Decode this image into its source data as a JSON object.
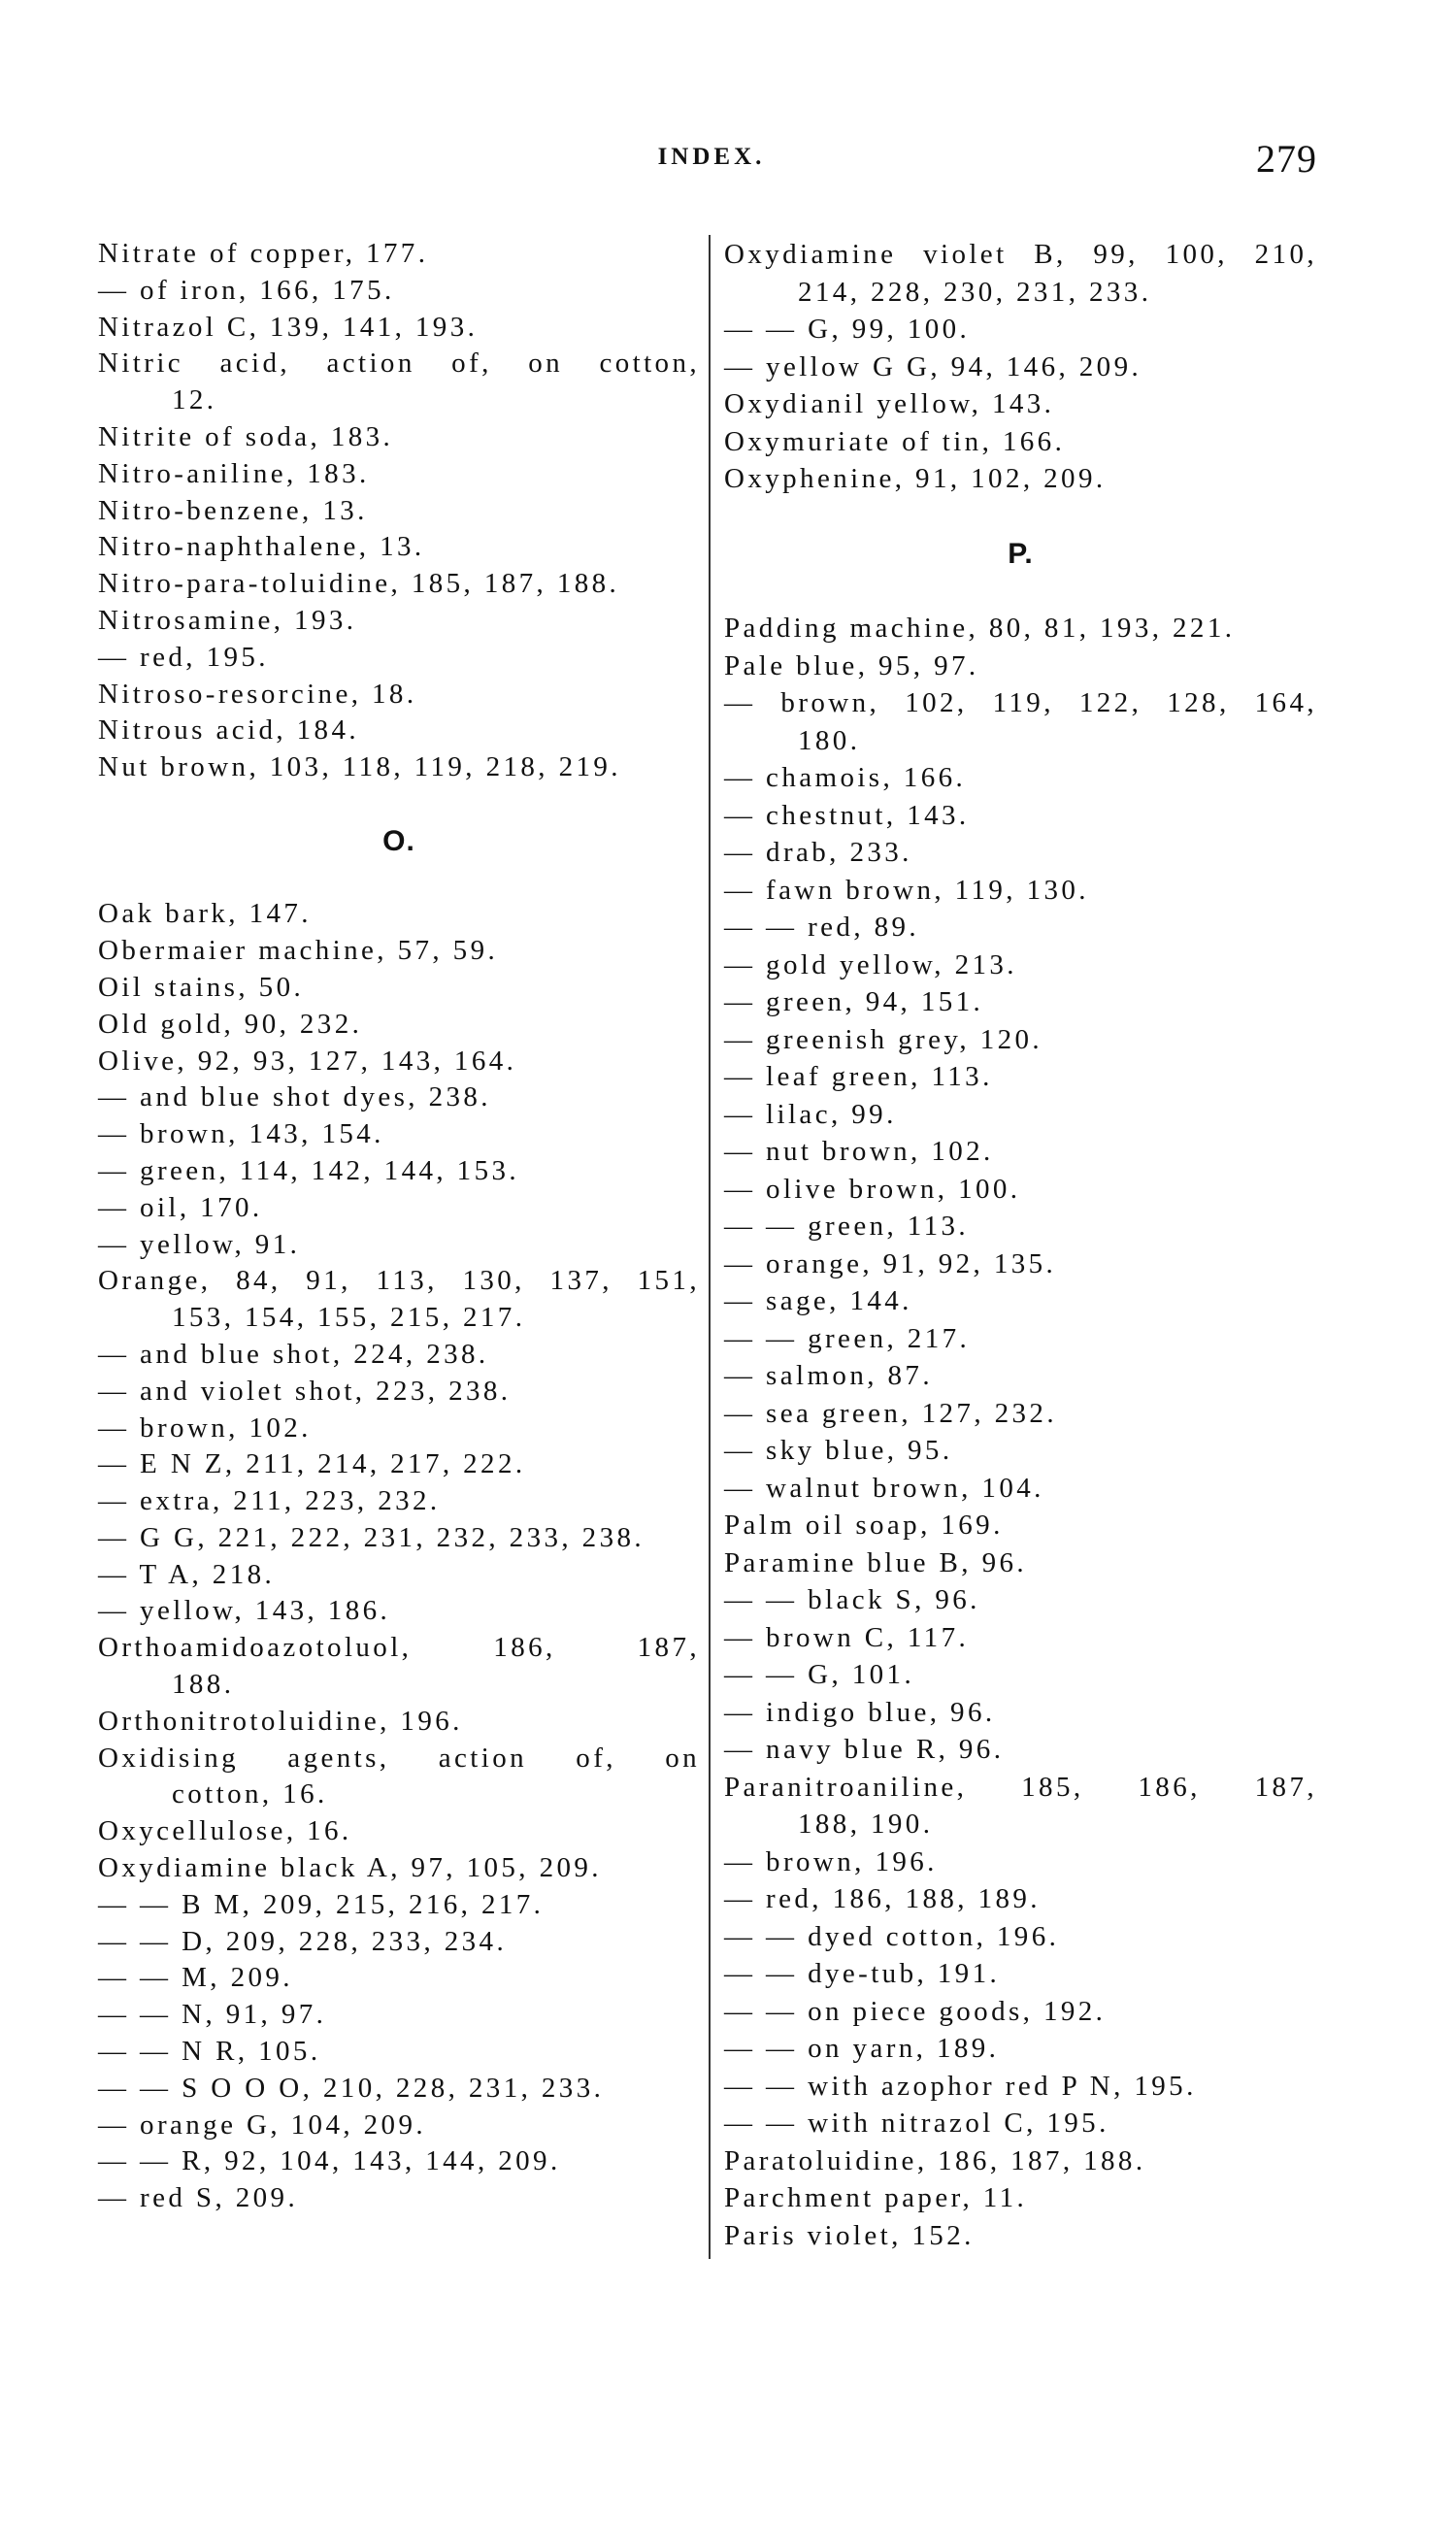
{
  "header": {
    "title": "INDEX.",
    "page_number": "279"
  },
  "columns": [
    {
      "items": [
        {
          "text": "Nitrate of copper, 177."
        },
        {
          "text": "— of iron, 166, 175."
        },
        {
          "text": "Nitrazol C, 139, 141, 193."
        },
        {
          "text": "Nitric acid, action of, on cotton,",
          "cont": "12."
        },
        {
          "text": "Nitrite of soda, 183."
        },
        {
          "text": "Nitro-aniline, 183."
        },
        {
          "text": "Nitro-benzene, 13."
        },
        {
          "text": "Nitro-naphthalene, 13."
        },
        {
          "text": "Nitro-para-toluidine, 185, 187, 188."
        },
        {
          "text": "Nitrosamine, 193."
        },
        {
          "text": "— red, 195."
        },
        {
          "text": "Nitroso-resorcine, 18."
        },
        {
          "text": "Nitrous acid, 184."
        },
        {
          "text": "Nut brown, 103, 118, 119, 218, 219."
        },
        {
          "heading": "O."
        },
        {
          "text": "Oak bark, 147."
        },
        {
          "text": "Obermaier machine, 57, 59."
        },
        {
          "text": "Oil stains, 50."
        },
        {
          "text": "Old gold, 90, 232."
        },
        {
          "text": "Olive, 92, 93, 127, 143, 164."
        },
        {
          "text": "— and blue shot dyes, 238."
        },
        {
          "text": "— brown, 143, 154."
        },
        {
          "text": "— green, 114, 142, 144, 153."
        },
        {
          "text": "— oil, 170."
        },
        {
          "text": "— yellow, 91."
        },
        {
          "text": "Orange, 84, 91, 113, 130, 137, 151,",
          "cont": "153, 154, 155, 215, 217."
        },
        {
          "text": "— and blue shot, 224, 238."
        },
        {
          "text": "— and violet shot, 223, 238."
        },
        {
          "text": "— brown, 102."
        },
        {
          "text": "— E N Z, 211, 214, 217, 222."
        },
        {
          "text": "— extra, 211, 223, 232."
        },
        {
          "text": "— G G, 221, 222, 231, 232, 233, 238."
        },
        {
          "text": "— T A, 218."
        },
        {
          "text": "— yellow, 143, 186."
        },
        {
          "text": "Orthoamidoazotoluol, 186, 187,",
          "cont": "188."
        },
        {
          "text": "Orthonitrotoluidine, 196."
        },
        {
          "text": "Oxidising agents, action of, on",
          "cont": "cotton, 16."
        },
        {
          "text": "Oxycellulose, 16."
        },
        {
          "text": "Oxydiamine black A, 97, 105, 209."
        },
        {
          "text": "— — B M, 209, 215, 216, 217."
        },
        {
          "text": "— — D, 209, 228, 233, 234."
        },
        {
          "text": "— — M, 209."
        },
        {
          "text": "— — N, 91, 97."
        },
        {
          "text": "— — N R, 105."
        },
        {
          "text": "— — S O O O, 210, 228, 231, 233."
        },
        {
          "text": "— orange G, 104, 209."
        },
        {
          "text": "— — R, 92, 104, 143, 144, 209."
        },
        {
          "text": "— red S, 209."
        }
      ]
    },
    {
      "items": [
        {
          "text": "Oxydiamine violet B, 99, 100, 210,",
          "cont": "214, 228, 230, 231, 233."
        },
        {
          "text": "— — G, 99, 100."
        },
        {
          "text": "— yellow G G, 94, 146, 209."
        },
        {
          "text": "Oxydianil yellow, 143."
        },
        {
          "text": "Oxymuriate of tin, 166."
        },
        {
          "text": "Oxyphenine, 91, 102, 209."
        },
        {
          "heading": "P."
        },
        {
          "text": "Padding machine, 80, 81, 193, 221."
        },
        {
          "text": "Pale blue, 95, 97."
        },
        {
          "text": "— brown, 102, 119, 122, 128, 164,",
          "cont": "180."
        },
        {
          "text": "— chamois, 166."
        },
        {
          "text": "— chestnut, 143."
        },
        {
          "text": "— drab, 233."
        },
        {
          "text": "— fawn brown, 119, 130."
        },
        {
          "text": "— — red, 89."
        },
        {
          "text": "— gold yellow, 213."
        },
        {
          "text": "— green, 94, 151."
        },
        {
          "text": "— greenish grey, 120."
        },
        {
          "text": "— leaf green, 113."
        },
        {
          "text": "— lilac, 99."
        },
        {
          "text": "— nut brown, 102."
        },
        {
          "text": "— olive brown, 100."
        },
        {
          "text": "— — green, 113."
        },
        {
          "text": "— orange, 91, 92, 135."
        },
        {
          "text": "— sage, 144."
        },
        {
          "text": "— — green, 217."
        },
        {
          "text": "— salmon, 87."
        },
        {
          "text": "— sea green, 127, 232."
        },
        {
          "text": "— sky blue, 95."
        },
        {
          "text": "— walnut brown, 104."
        },
        {
          "text": "Palm oil soap, 169."
        },
        {
          "text": "Paramine blue B, 96."
        },
        {
          "text": "— — black S, 96."
        },
        {
          "text": "— brown C, 117."
        },
        {
          "text": "— — G, 101."
        },
        {
          "text": "— indigo blue, 96."
        },
        {
          "text": "— navy blue R, 96."
        },
        {
          "text": "Paranitroaniline, 185, 186, 187,",
          "cont": "188, 190."
        },
        {
          "text": "— brown, 196."
        },
        {
          "text": "— red, 186, 188, 189."
        },
        {
          "text": "— — dyed cotton, 196."
        },
        {
          "text": "— — dye-tub, 191."
        },
        {
          "text": "— — on piece goods, 192."
        },
        {
          "text": "— — on yarn, 189."
        },
        {
          "text": "— — with azophor red P N, 195."
        },
        {
          "text": "— — with nitrazol C, 195."
        },
        {
          "text": "Paratoluidine, 186, 187, 188."
        },
        {
          "text": "Parchment paper, 11."
        },
        {
          "text": "Paris violet, 152."
        }
      ]
    }
  ]
}
